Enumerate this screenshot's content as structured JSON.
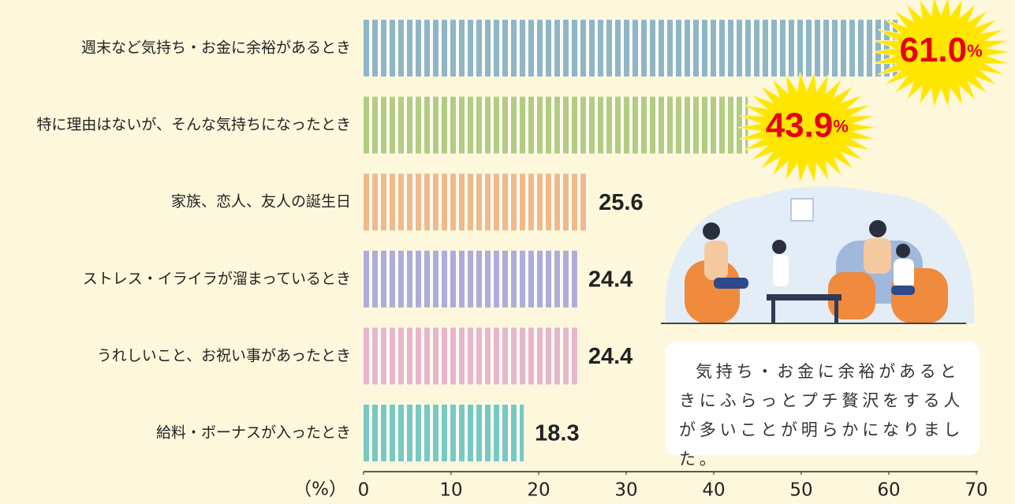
{
  "chart_data": {
    "type": "bar",
    "orientation": "horizontal",
    "categories": [
      "週末など気持ち・お金に余裕があるとき",
      "特に理由はないが、そんな気持ちになったとき",
      "家族、恋人、友人の誕生日",
      "ストレス・イライラが溜まっているとき",
      "うれしいこと、お祝い事があったとき",
      "給料・ボーナスが入ったとき"
    ],
    "values": [
      61.0,
      43.9,
      25.6,
      24.4,
      24.4,
      18.3
    ],
    "value_labels": [
      "61.0%",
      "43.9%",
      "25.6",
      "24.4",
      "24.4",
      "18.3"
    ],
    "colors": [
      "#8fb6c6",
      "#b3cc82",
      "#f0b98a",
      "#aeacd9",
      "#e8b6cb",
      "#79c9c3"
    ],
    "xlim": [
      0,
      70
    ],
    "xticks": [
      0,
      10,
      20,
      30,
      40,
      50,
      60,
      70
    ],
    "xlabel": "（%）",
    "annotation": "気持ち・お金に余裕があるときにふらっとプチ贅沢をする人が多いことが明らかになりました。"
  }
}
